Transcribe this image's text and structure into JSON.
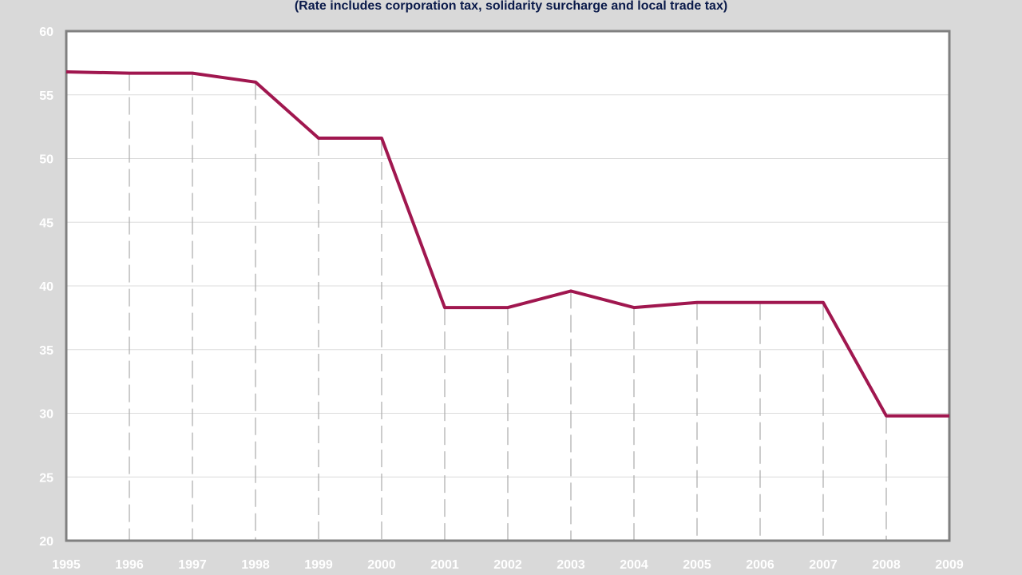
{
  "chart_data": {
    "type": "line",
    "title": "",
    "subtitle": "(Rate includes corporation tax, solidarity surcharge and local trade tax)",
    "xlabel": "",
    "ylabel": "",
    "categories": [
      "1995",
      "1996",
      "1997",
      "1998",
      "1999",
      "2000",
      "2001",
      "2002",
      "2003",
      "2004",
      "2005",
      "2006",
      "2007",
      "2008",
      "2009"
    ],
    "series": [
      {
        "values": [
          56.8,
          56.7,
          56.7,
          56.0,
          51.6,
          51.6,
          38.3,
          38.3,
          39.6,
          38.3,
          38.7,
          38.7,
          38.7,
          29.8,
          29.8
        ]
      }
    ],
    "ylim": [
      20,
      60
    ],
    "yticks": [
      "20",
      "25",
      "30",
      "35",
      "40",
      "45",
      "50",
      "55",
      "60"
    ],
    "grid": true,
    "legend": "none"
  },
  "colors": {
    "line": "#a0174f",
    "background": "#d9d9d9",
    "plot_background": "#ffffff",
    "plot_border": "#808080",
    "gridline": "#dcdcdc",
    "dropline": "#b0b0b0",
    "subtitle_text": "#0a1a4a",
    "tick_text": "#ffffff"
  }
}
